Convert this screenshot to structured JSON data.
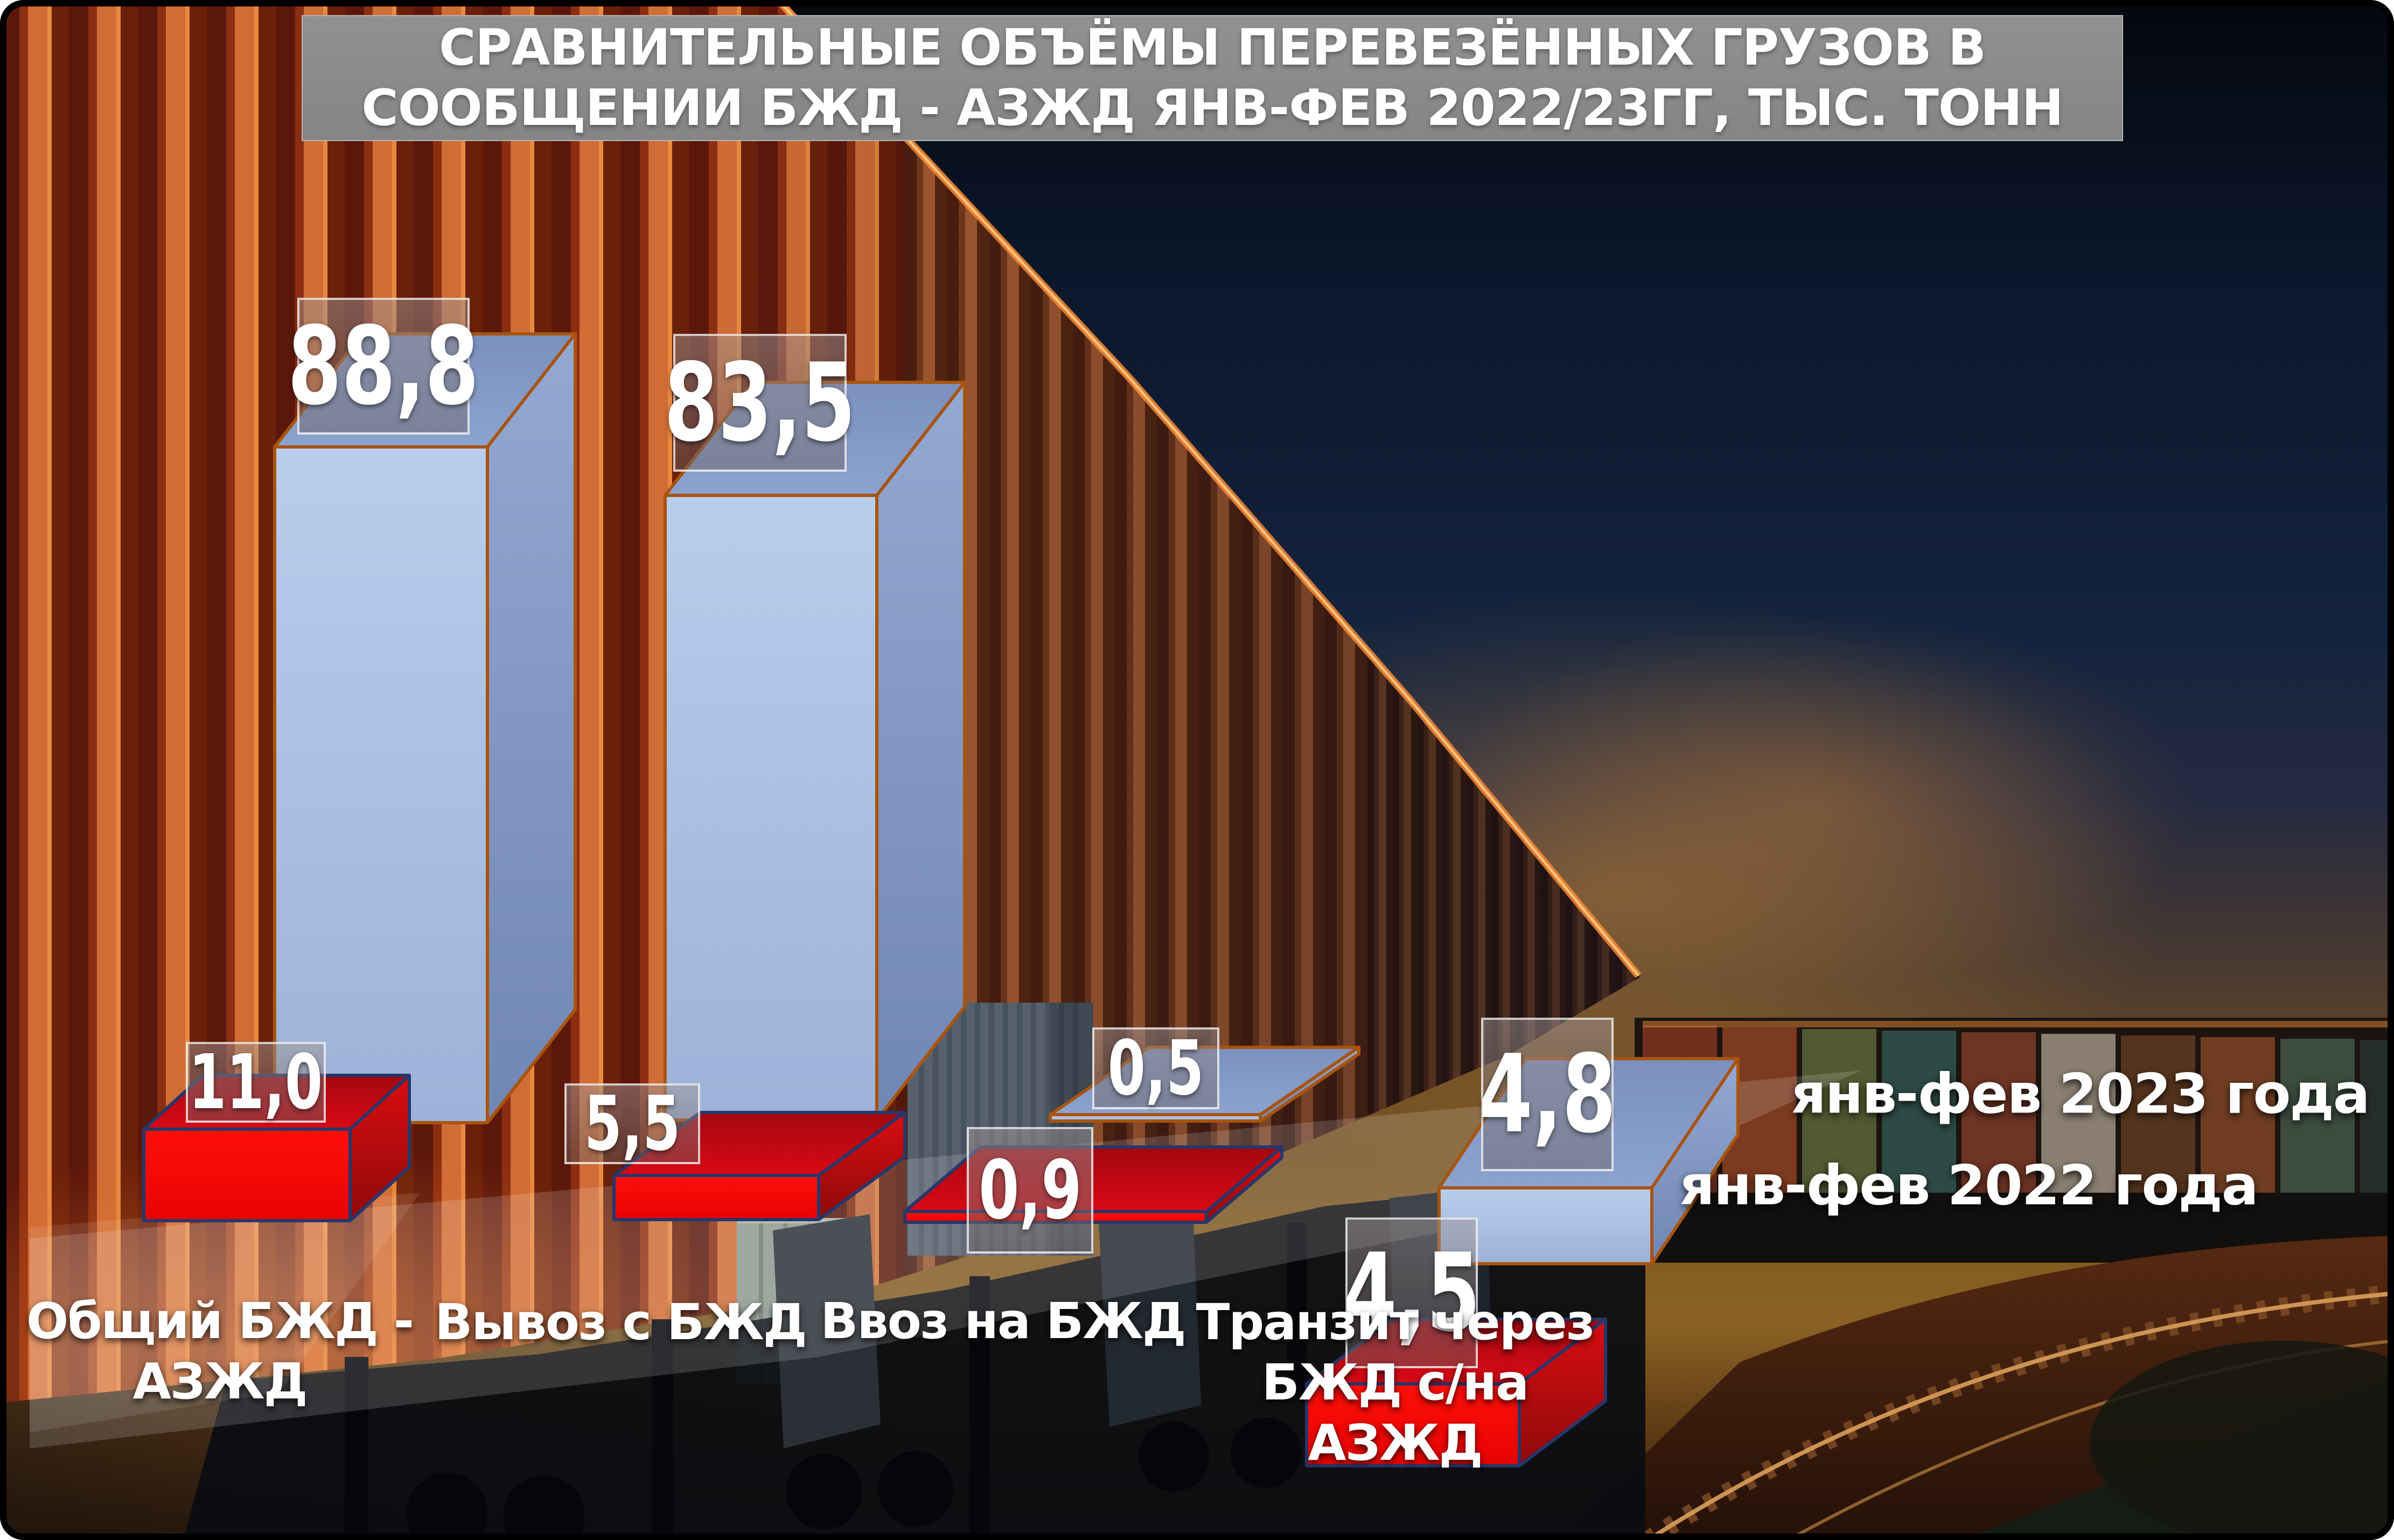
{
  "title": "СРАВНИТЕЛЬНЫЕ ОБЪЁМЫ ПЕРЕВЕЗЁННЫХ ГРУЗОВ В\nСООБЩЕНИИ БЖД - АЗЖД ЯНВ-ФЕВ 2022/23ГГ, ТЫС. ТОНН",
  "legend": {
    "item_2023": "янв-фев 2023 года",
    "item_2022": "янв-фев 2022 года"
  },
  "categories_display": [
    "Общий БЖД -\nАЗЖД",
    "Вывоз с БЖД",
    "Ввоз на БЖД",
    "Транзит через\nБЖД с/на\nАЗЖД"
  ],
  "chart_data": {
    "type": "bar",
    "title": "СРАВНИТЕЛЬНЫЕ ОБЪЁМЫ ПЕРЕВЕЗЁННЫХ ГРУЗОВ В СООБЩЕНИИ БЖД - АЗЖД ЯНВ-ФЕВ 2022/23ГГ, ТЫС. ТОНН",
    "unit": "тыс. тонн",
    "categories": [
      "Общий БЖД - АЗЖД",
      "Вывоз с БЖД",
      "Ввоз на БЖД",
      "Транзит через БЖД с/на АЗЖД"
    ],
    "series": [
      {
        "name": "янв-фев 2023 года",
        "color": "#a9bee2",
        "values": [
          88.8,
          83.5,
          0.5,
          4.8
        ],
        "labels": [
          "88,8",
          "83,5",
          "0,5",
          "4,8"
        ]
      },
      {
        "name": "янв-фев 2022 года",
        "color": "#f60505",
        "values": [
          11.0,
          5.5,
          0.9,
          4.5
        ],
        "labels": [
          "11,0",
          "5,5",
          "0,9",
          "4,5"
        ]
      }
    ],
    "legend_position": "right",
    "grid": false,
    "axes_visible": false,
    "style": "pseudo-3d bars over photo background"
  },
  "colors": {
    "accent_blue": "#a9bee2",
    "accent_red": "#f60505",
    "blue_outline": "#a8540e",
    "red_outline": "#26376b",
    "title_bg": "#8a8a8a",
    "text": "#ffffff"
  }
}
